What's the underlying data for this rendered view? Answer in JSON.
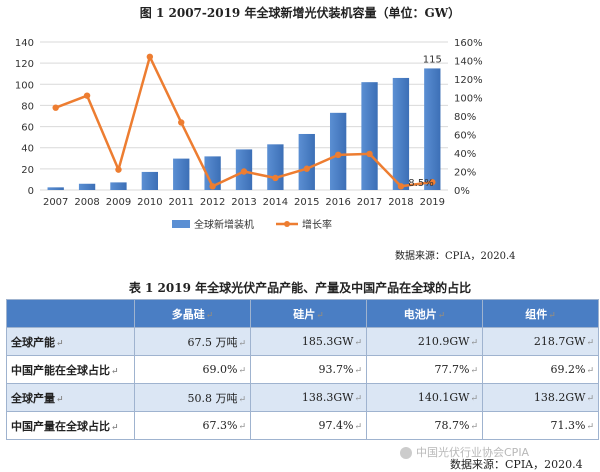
{
  "figure": {
    "title": "图 1 2007-2019 年全球新增光伏装机容量（单位：GW）",
    "source": "数据来源：CPIA，2020.4"
  },
  "colors": {
    "bar": "#5b8fd3",
    "bar_dark": "#3c6fb6",
    "line": "#ed7d31",
    "grid": "#d9d9d9",
    "header": "#4a7ec4",
    "row_alt": "#dbe6f4"
  },
  "chart_data": {
    "type": "bar",
    "categories": [
      "2007",
      "2008",
      "2009",
      "2010",
      "2011",
      "2012",
      "2013",
      "2014",
      "2015",
      "2016",
      "2017",
      "2018",
      "2019"
    ],
    "series": [
      {
        "name": "全球新增装机",
        "type": "bar",
        "axis": "left",
        "values": [
          2.5,
          5.9,
          7.2,
          17.1,
          29.7,
          31.8,
          38.4,
          43.2,
          53.0,
          73.0,
          102.0,
          106.0,
          115.0
        ]
      },
      {
        "name": "增长率",
        "type": "line",
        "axis": "right",
        "values": [
          0.89,
          1.02,
          0.22,
          1.44,
          0.73,
          0.04,
          0.2,
          0.13,
          0.23,
          0.38,
          0.39,
          0.04,
          0.085
        ]
      }
    ],
    "ylim_left": [
      0,
      140
    ],
    "yticks_left": [
      0,
      20,
      40,
      60,
      80,
      100,
      120,
      140
    ],
    "ylim_right": [
      0,
      1.6
    ],
    "yticks_right": [
      "0%",
      "20%",
      "40%",
      "60%",
      "80%",
      "100%",
      "120%",
      "140%",
      "160%"
    ],
    "annotations": [
      {
        "x": "2019",
        "series": "全球新增装机",
        "text": "115"
      },
      {
        "x": "2019",
        "series": "增长率",
        "text": "8.5%"
      }
    ],
    "grid": true,
    "legend": "bottom"
  },
  "table": {
    "title": "表 1 2019 年全球光伏产品产能、产量及中国产品在全球的占比",
    "mark": "↵",
    "headers": [
      "多晶硅",
      "硅片",
      "电池片",
      "组件"
    ],
    "rows": [
      {
        "label": "全球产能",
        "cells": [
          "67.5 万吨",
          "185.3GW",
          "210.9GW",
          "218.7GW"
        ]
      },
      {
        "label": "中国产能在全球占比",
        "cells": [
          "69.0%",
          "93.7%",
          "77.7%",
          "69.2%"
        ]
      },
      {
        "label": "全球产量",
        "cells": [
          "50.8 万吨",
          "138.3GW",
          "140.1GW",
          "138.2GW"
        ]
      },
      {
        "label": "中国产量在全球占比",
        "cells": [
          "67.3%",
          "97.4%",
          "78.7%",
          "71.3%"
        ]
      }
    ],
    "source": "数据来源：CPIA，2020.4",
    "watermark": "中国光伏行业协会CPIA"
  }
}
